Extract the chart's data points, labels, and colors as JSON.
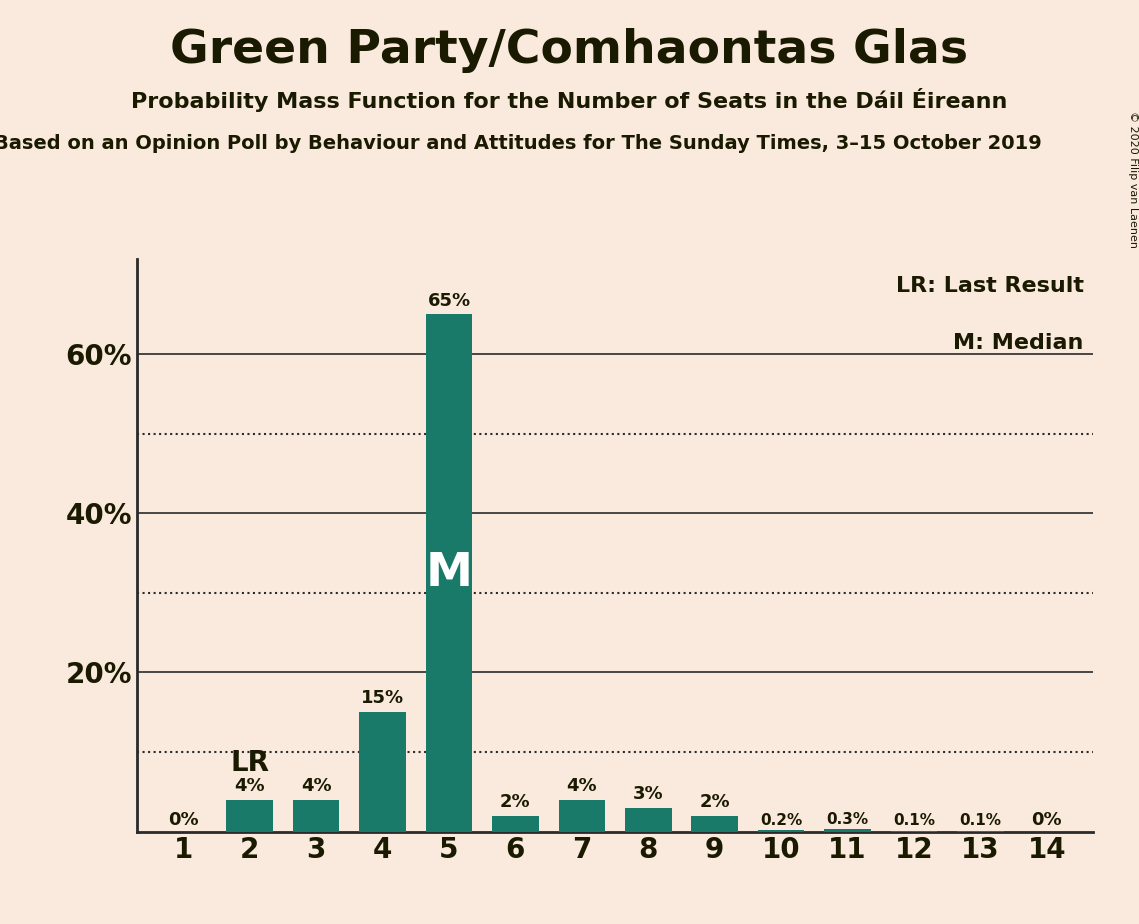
{
  "title": "Green Party/Comhaontas Glas",
  "subtitle": "Probability Mass Function for the Number of Seats in the Dáil Éireann",
  "subsubtitle": "Based on an Opinion Poll by Behaviour and Attitudes for The Sunday Times, 3–15 October 2019",
  "copyright": "© 2020 Filip van Laenen",
  "categories": [
    1,
    2,
    3,
    4,
    5,
    6,
    7,
    8,
    9,
    10,
    11,
    12,
    13,
    14
  ],
  "values": [
    0.0,
    0.04,
    0.04,
    0.15,
    0.65,
    0.02,
    0.04,
    0.03,
    0.02,
    0.002,
    0.003,
    0.001,
    0.001,
    0.0
  ],
  "bar_labels": [
    "0%",
    "4%",
    "4%",
    "15%",
    "65%",
    "2%",
    "4%",
    "3%",
    "2%",
    "0.2%",
    "0.3%",
    "0.1%",
    "0.1%",
    "0%"
  ],
  "bar_color": "#1a7a6a",
  "background_color": "#faeade",
  "title_color": "#1a1a00",
  "text_color": "#1a1a00",
  "axis_color": "#2a2a2a",
  "lr_bar_index": 1,
  "median_bar_index": 4,
  "yticks": [
    0.2,
    0.4,
    0.6
  ],
  "ytick_labels": [
    "20%",
    "40%",
    "60%"
  ],
  "solid_lines": [
    0.2,
    0.4,
    0.6
  ],
  "dotted_lines": [
    0.1,
    0.3,
    0.5
  ],
  "legend_lr": "LR: Last Result",
  "legend_m": "M: Median",
  "ylim": [
    0,
    0.72
  ]
}
